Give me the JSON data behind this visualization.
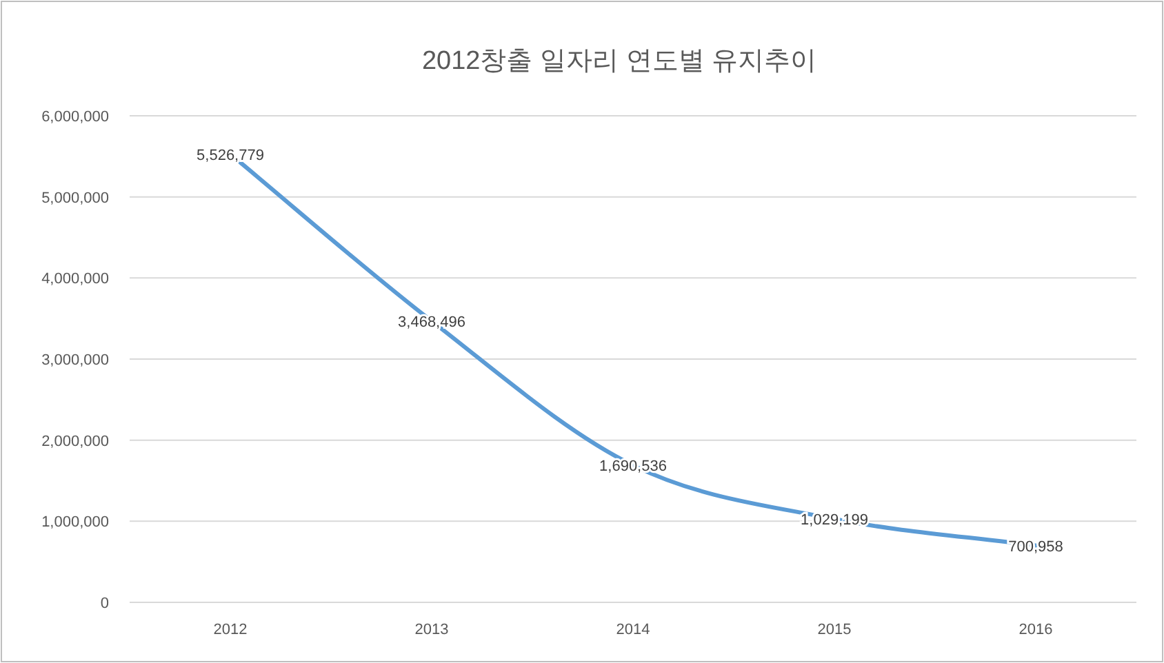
{
  "chart_data": {
    "type": "line",
    "title": "2012창출 일자리 연도별 유지추이",
    "categories": [
      "2012",
      "2013",
      "2014",
      "2015",
      "2016"
    ],
    "series": [
      {
        "color": "#5b9bd5",
        "values": [
          5526779,
          3468496,
          1690536,
          1029199,
          700958
        ],
        "value_labels": [
          "5,526,779",
          "3,468,496",
          "1,690,536",
          "1,029,199",
          "700,958"
        ]
      }
    ],
    "ylim": [
      0,
      6000000
    ],
    "yticks": [
      {
        "value": 0,
        "label": "0"
      },
      {
        "value": 1000000,
        "label": "1,000,000"
      },
      {
        "value": 2000000,
        "label": "2,000,000"
      },
      {
        "value": 3000000,
        "label": "3,000,000"
      },
      {
        "value": 4000000,
        "label": "4,000,000"
      },
      {
        "value": 5000000,
        "label": "5,000,000"
      },
      {
        "value": 6000000,
        "label": "6,000,000"
      }
    ],
    "grid": "y",
    "marker": "none",
    "line_style": "solid"
  }
}
